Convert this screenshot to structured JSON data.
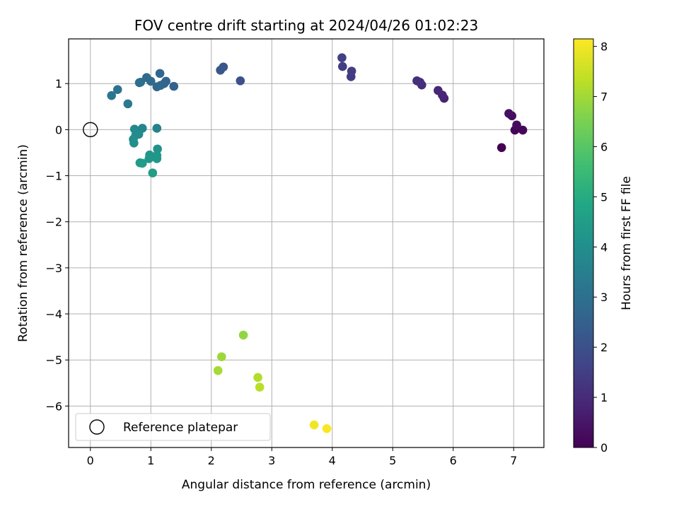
{
  "chart_data": {
    "type": "scatter",
    "title": "FOV centre drift starting at 2024/04/26 01:02:23",
    "xlabel": "Angular distance from reference (arcmin)",
    "ylabel": "Rotation from reference (arcmin)",
    "xlim": [
      -0.36,
      7.5
    ],
    "ylim": [
      -6.9,
      1.97
    ],
    "xticks": [
      0,
      1,
      2,
      3,
      4,
      5,
      6,
      7
    ],
    "yticks": [
      1,
      0,
      -1,
      -2,
      -3,
      -4,
      -5,
      -6
    ],
    "grid": true,
    "legend": {
      "placement": "lower-left",
      "label": "Reference platepar"
    },
    "reference_point": {
      "x": 0,
      "y": 0
    },
    "colorbar": {
      "label": "Hours from first FF file",
      "min": 0,
      "max": 8.15,
      "ticks": [
        0,
        1,
        2,
        3,
        4,
        5,
        6,
        7,
        8
      ],
      "colormap": "viridis"
    },
    "points": [
      {
        "x": 6.8,
        "y": -0.39,
        "t": 0.0
      },
      {
        "x": 7.02,
        "y": -0.01,
        "t": 0.1
      },
      {
        "x": 7.15,
        "y": -0.01,
        "t": 0.15
      },
      {
        "x": 7.05,
        "y": 0.1,
        "t": 0.2
      },
      {
        "x": 6.97,
        "y": 0.3,
        "t": 0.3
      },
      {
        "x": 6.92,
        "y": 0.35,
        "t": 0.35
      },
      {
        "x": 5.85,
        "y": 0.68,
        "t": 0.8
      },
      {
        "x": 5.82,
        "y": 0.75,
        "t": 0.85
      },
      {
        "x": 5.75,
        "y": 0.85,
        "t": 0.9
      },
      {
        "x": 5.48,
        "y": 0.97,
        "t": 1.05
      },
      {
        "x": 5.45,
        "y": 1.03,
        "t": 1.1
      },
      {
        "x": 5.4,
        "y": 1.06,
        "t": 1.1
      },
      {
        "x": 4.31,
        "y": 1.15,
        "t": 1.4
      },
      {
        "x": 4.32,
        "y": 1.27,
        "t": 1.45
      },
      {
        "x": 4.17,
        "y": 1.37,
        "t": 1.5
      },
      {
        "x": 4.16,
        "y": 1.56,
        "t": 1.55
      },
      {
        "x": 2.48,
        "y": 1.06,
        "t": 2.0
      },
      {
        "x": 2.2,
        "y": 1.36,
        "t": 2.15
      },
      {
        "x": 2.15,
        "y": 1.29,
        "t": 2.2
      },
      {
        "x": 1.38,
        "y": 0.94,
        "t": 2.5
      },
      {
        "x": 1.25,
        "y": 1.05,
        "t": 2.6
      },
      {
        "x": 1.22,
        "y": 1.0,
        "t": 2.65
      },
      {
        "x": 1.16,
        "y": 0.96,
        "t": 2.7
      },
      {
        "x": 1.15,
        "y": 1.22,
        "t": 2.7
      },
      {
        "x": 1.1,
        "y": 0.93,
        "t": 2.75
      },
      {
        "x": 1.0,
        "y": 1.05,
        "t": 2.8
      },
      {
        "x": 0.93,
        "y": 1.13,
        "t": 2.85
      },
      {
        "x": 0.83,
        "y": 1.03,
        "t": 2.9
      },
      {
        "x": 0.81,
        "y": 1.02,
        "t": 2.95
      },
      {
        "x": 0.45,
        "y": 0.87,
        "t": 3.1
      },
      {
        "x": 0.35,
        "y": 0.74,
        "t": 3.2
      },
      {
        "x": 0.62,
        "y": 0.56,
        "t": 3.3
      },
      {
        "x": 1.1,
        "y": 0.03,
        "t": 3.6
      },
      {
        "x": 0.86,
        "y": 0.03,
        "t": 3.7
      },
      {
        "x": 0.73,
        "y": 0.01,
        "t": 3.8
      },
      {
        "x": 0.8,
        "y": -0.1,
        "t": 3.85
      },
      {
        "x": 0.75,
        "y": -0.12,
        "t": 3.9
      },
      {
        "x": 0.71,
        "y": -0.21,
        "t": 3.95
      },
      {
        "x": 0.72,
        "y": -0.29,
        "t": 4.0
      },
      {
        "x": 1.11,
        "y": -0.42,
        "t": 4.1
      },
      {
        "x": 0.98,
        "y": -0.55,
        "t": 4.2
      },
      {
        "x": 1.1,
        "y": -0.56,
        "t": 4.25
      },
      {
        "x": 0.97,
        "y": -0.63,
        "t": 4.3
      },
      {
        "x": 1.1,
        "y": -0.63,
        "t": 4.3
      },
      {
        "x": 0.82,
        "y": -0.72,
        "t": 4.4
      },
      {
        "x": 0.86,
        "y": -0.73,
        "t": 4.45
      },
      {
        "x": 1.03,
        "y": -0.94,
        "t": 4.5
      },
      {
        "x": 2.53,
        "y": -4.46,
        "t": 6.8
      },
      {
        "x": 2.17,
        "y": -4.93,
        "t": 6.95
      },
      {
        "x": 2.11,
        "y": -5.23,
        "t": 7.05
      },
      {
        "x": 2.77,
        "y": -5.38,
        "t": 7.2
      },
      {
        "x": 2.8,
        "y": -5.59,
        "t": 7.3
      },
      {
        "x": 3.7,
        "y": -6.41,
        "t": 8.0
      },
      {
        "x": 3.91,
        "y": -6.49,
        "t": 8.1
      }
    ]
  }
}
